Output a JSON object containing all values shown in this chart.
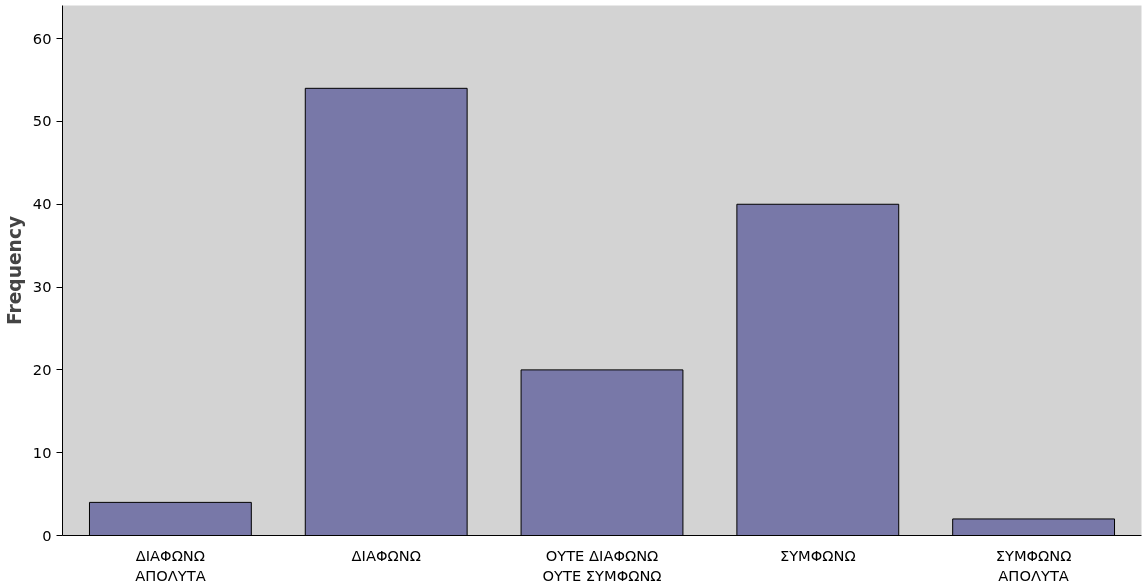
{
  "chart_data": {
    "type": "bar",
    "ylabel": "Frequency",
    "categories": [
      "ΔΙΑΦΩΝΩ\nΑΠΟΛΥΤΑ",
      "ΔΙΑΦΩΝΩ",
      "ΟΥΤΕ ΔΙΑΦΩΝΩ\nΟΥΤΕ ΣΥΜΦΩΝΩ",
      "ΣΥΜΦΩΝΩ",
      "ΣΥΜΦΩΝΩ\nΑΠΟΛΥΤΑ"
    ],
    "values": [
      4,
      54,
      20,
      40,
      2
    ],
    "color": "#7878a8",
    "ylim": [
      0,
      64
    ],
    "yticks": [
      0,
      10,
      20,
      30,
      40,
      50,
      60
    ],
    "grid": false
  }
}
